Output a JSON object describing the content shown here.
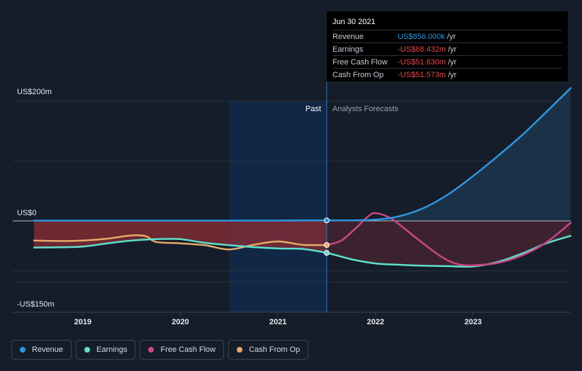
{
  "tooltip": {
    "date": "Jun 30 2021",
    "rows": [
      {
        "label": "Revenue",
        "value": "US$856.000k",
        "unit": "/yr"
      },
      {
        "label": "Earnings",
        "value": "-US$68.432m",
        "unit": "/yr"
      },
      {
        "label": "Free Cash Flow",
        "value": "-US$51.630m",
        "unit": "/yr"
      },
      {
        "label": "Cash From Op",
        "value": "-US$51.573m",
        "unit": "/yr"
      }
    ]
  },
  "section_labels": {
    "past": "Past",
    "forecast": "Analysts Forecasts"
  },
  "legend": [
    {
      "label": "Revenue",
      "color": "#2f95e0"
    },
    {
      "label": "Earnings",
      "color": "#5ee0cc"
    },
    {
      "label": "Free Cash Flow",
      "color": "#c8478a"
    },
    {
      "label": "Cash From Op",
      "color": "#e8a866"
    }
  ],
  "chart_data": {
    "type": "line",
    "y_tick_labels": [
      "US$200m",
      "US$0",
      "-US$150m"
    ],
    "x_tick_labels": [
      "2019",
      "2020",
      "2021",
      "2022",
      "2023"
    ],
    "x_ticks": [
      2019,
      2020,
      2021,
      2022,
      2023
    ],
    "xlim": [
      2018.5,
      2024.0
    ],
    "ylim": [
      -150,
      200
    ],
    "y_ticks": [
      200,
      0,
      -150
    ],
    "past_end": 2021.5,
    "highlight_start": 2020.5,
    "series": [
      {
        "name": "Revenue",
        "color": "#2f95e0",
        "x": [
          2018.5,
          2019.0,
          2019.5,
          2020.0,
          2020.5,
          2021.0,
          2021.5,
          2021.75,
          2022.0,
          2022.25,
          2022.5,
          2022.75,
          2023.0,
          2023.25,
          2023.5,
          2023.75,
          2024.0
        ],
        "y": [
          0.5,
          0.5,
          0.5,
          0.5,
          0.5,
          0.6,
          0.9,
          1,
          2,
          8,
          22,
          45,
          75,
          108,
          143,
          182,
          222
        ]
      },
      {
        "name": "Earnings",
        "color": "#5ee0cc",
        "x": [
          2018.5,
          2018.75,
          2019.0,
          2019.25,
          2019.5,
          2019.75,
          2020.0,
          2020.25,
          2020.5,
          2020.75,
          2021.0,
          2021.25,
          2021.5,
          2021.75,
          2022.0,
          2022.25,
          2022.5,
          2022.75,
          2023.0,
          2023.25,
          2023.5,
          2023.75,
          2024.0
        ],
        "y": [
          -57,
          -56.5,
          -55,
          -48,
          -42,
          -39,
          -39,
          -47,
          -52,
          -56,
          -59,
          -60,
          -68.4,
          -82,
          -91,
          -94,
          -96,
          -97,
          -97.5,
          -88,
          -70,
          -48,
          -32
        ]
      },
      {
        "name": "Free Cash Flow",
        "color": "#c8478a",
        "x": [
          2021.5,
          2021.65,
          2021.8,
          2021.92,
          2022.0,
          2022.15,
          2022.3,
          2022.5,
          2022.7,
          2022.85,
          2023.0,
          2023.25,
          2023.5,
          2023.75,
          2024.0
        ],
        "y": [
          -51.6,
          -42,
          -15,
          7,
          13,
          5,
          -17,
          -50,
          -80,
          -93,
          -95,
          -90,
          -74,
          -46,
          -4
        ]
      },
      {
        "name": "Cash From Op",
        "color": "#e8a866",
        "x": [
          2018.5,
          2018.75,
          2019.0,
          2019.25,
          2019.5,
          2019.65,
          2019.75,
          2020.0,
          2020.25,
          2020.5,
          2020.75,
          2021.0,
          2021.25,
          2021.5
        ],
        "y": [
          -42,
          -43,
          -42,
          -38,
          -31,
          -33,
          -45,
          -48,
          -52,
          -61,
          -51,
          -44,
          -51,
          -51.6
        ]
      }
    ]
  }
}
